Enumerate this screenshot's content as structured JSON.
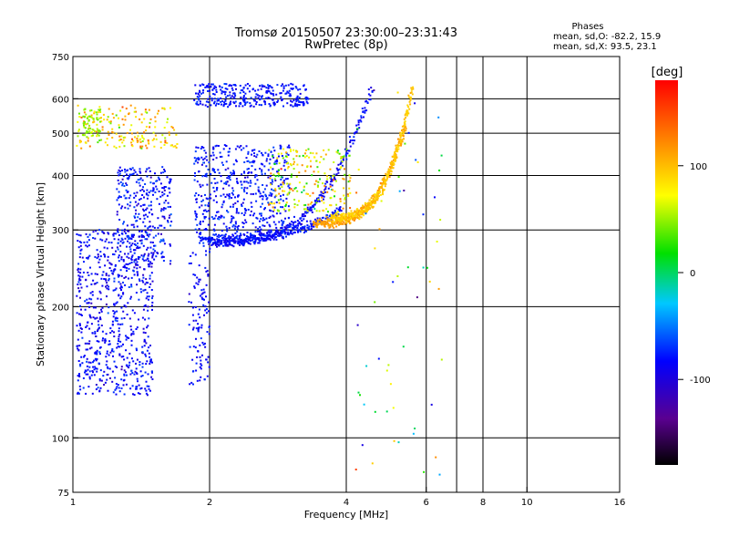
{
  "chart_data": {
    "type": "scatter",
    "title": "Tromsø 20150507 23:30:00–23:31:43",
    "subtitle": "RwPretec (8p)",
    "xlabel": "Frequency [MHz]",
    "ylabel": "Stationary phase Virtual Height [km]",
    "x_scale": "log",
    "y_scale": "log",
    "xlim": [
      1,
      16
    ],
    "ylim": [
      75,
      750
    ],
    "x_ticks": [
      1,
      2,
      4,
      6,
      8,
      10,
      16
    ],
    "y_ticks": [
      75,
      100,
      200,
      300,
      400,
      500,
      600,
      750
    ],
    "x_grid": [
      2,
      4,
      6,
      7,
      8,
      10
    ],
    "y_grid": [
      100,
      200,
      300,
      400,
      500,
      600
    ],
    "grid": true,
    "colorbar": {
      "label": "[deg]",
      "range": [
        -180,
        180
      ],
      "ticks": [
        -100,
        0,
        100
      ]
    },
    "stats": {
      "title": "Phases",
      "line1": "mean, sd,O: -82.2, 15.9",
      "line2": "mean, sd,X:  93.5, 23.1"
    },
    "traces": [
      {
        "f0": 1.9,
        "f1": 3.9,
        "h0": 285,
        "h1": 335,
        "phase": -95
      },
      {
        "f0": 2.0,
        "f1": 4.55,
        "h0": 280,
        "h1": 630,
        "phase": -100
      },
      {
        "f0": 3.4,
        "f1": 5.4,
        "h0": 310,
        "h1": 520,
        "phase": 105
      },
      {
        "f0": 3.7,
        "f1": 5.6,
        "h0": 320,
        "h1": 640,
        "phase": 85
      }
    ],
    "clusters": [
      {
        "f0": 1.02,
        "f1": 1.5,
        "h0": 125,
        "h1": 300,
        "n": 700,
        "phase": -100,
        "spread": 20
      },
      {
        "f0": 1.25,
        "f1": 1.65,
        "h0": 250,
        "h1": 420,
        "n": 320,
        "phase": -95,
        "spread": 25
      },
      {
        "f0": 1.02,
        "f1": 1.7,
        "h0": 460,
        "h1": 580,
        "n": 180,
        "phase": 80,
        "spread": 60
      },
      {
        "f0": 1.05,
        "f1": 1.15,
        "h0": 490,
        "h1": 570,
        "n": 60,
        "phase": 35,
        "spread": 15
      },
      {
        "f0": 1.85,
        "f1": 3.0,
        "h0": 290,
        "h1": 470,
        "n": 520,
        "phase": -95,
        "spread": 20
      },
      {
        "f0": 1.85,
        "f1": 3.3,
        "h0": 575,
        "h1": 650,
        "n": 300,
        "phase": -95,
        "spread": 15
      },
      {
        "f0": 1.8,
        "f1": 2.0,
        "h0": 130,
        "h1": 270,
        "n": 110,
        "phase": -100,
        "spread": 15
      },
      {
        "f0": 2.7,
        "f1": 4.1,
        "h0": 330,
        "h1": 460,
        "n": 220,
        "phase": 60,
        "spread": 80
      },
      {
        "f0": 4.2,
        "f1": 6.5,
        "h0": 80,
        "h1": 650,
        "n": 60,
        "phase": 0,
        "spread": 150
      }
    ]
  }
}
